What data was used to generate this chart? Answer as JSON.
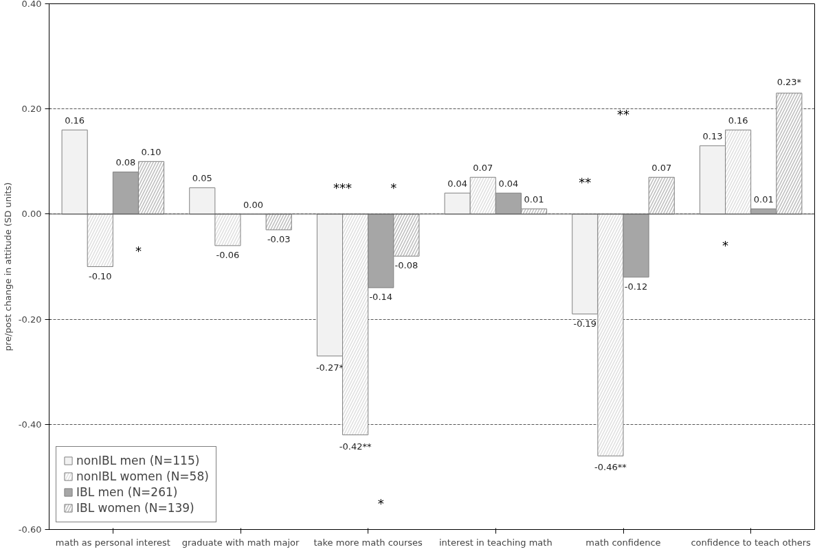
{
  "chart_data": {
    "type": "bar",
    "ylabel": "pre/post change in attitude (SD units)",
    "categories": [
      "math as personal interest",
      "graduate with math major",
      "take more math courses",
      "interest in teaching math",
      "math confidence",
      "confidence to teach others"
    ],
    "series": [
      {
        "name": "nonIBL men (N=115)",
        "color": "#f2f2f2",
        "values": [
          0.16,
          0.05,
          -0.27,
          0.04,
          -0.19,
          0.13
        ],
        "value_labels": [
          "0.16",
          "0.05",
          "-0.27*",
          "0.04",
          "-0.19",
          "0.13"
        ]
      },
      {
        "name": "nonIBL women (N=58)",
        "color": "#e0e0e0",
        "values": [
          -0.1,
          -0.06,
          -0.42,
          0.07,
          -0.46,
          0.16
        ],
        "value_labels": [
          "-0.10",
          "-0.06",
          "-0.42**",
          "0.07",
          "-0.46**",
          "0.16"
        ]
      },
      {
        "name": "IBL men (N=261)",
        "color": "#a6a6a6",
        "values": [
          0.08,
          0.0,
          -0.14,
          0.04,
          -0.12,
          0.01
        ],
        "value_labels": [
          "0.08",
          "0.00",
          "-0.14",
          "0.04",
          "-0.12",
          "0.01"
        ]
      },
      {
        "name": "IBL women (N=139)",
        "color": "#bfbfbf",
        "values": [
          0.1,
          -0.03,
          -0.08,
          0.01,
          0.07,
          0.23
        ],
        "value_labels": [
          "0.10",
          "-0.03",
          "-0.08",
          "0.01",
          "0.07",
          "0.23*"
        ]
      }
    ],
    "ylim": [
      -0.6,
      0.4
    ],
    "yticks": [
      {
        "value": -0.6,
        "label": "-0.60"
      },
      {
        "value": -0.4,
        "label": "-0.40"
      },
      {
        "value": -0.2,
        "label": "-0.20"
      },
      {
        "value": 0,
        "label": "0.00"
      },
      {
        "value": 0.2,
        "label": "0.20"
      },
      {
        "value": 0.4,
        "label": "0.40"
      }
    ],
    "grid": "y",
    "legend": "bottom left",
    "annotations": [
      "*",
      "***",
      "*",
      "*",
      "**",
      "**",
      "*"
    ]
  }
}
